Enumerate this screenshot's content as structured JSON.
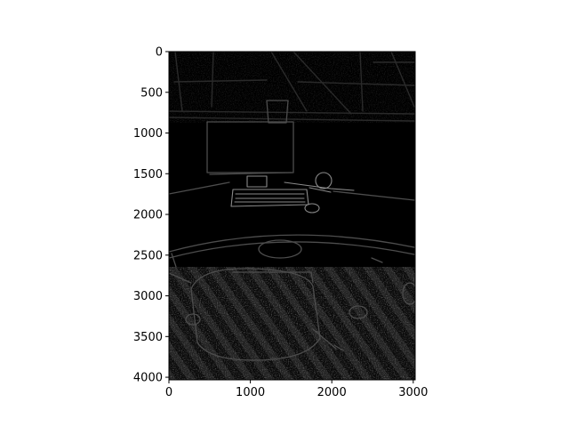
{
  "chart_data": {
    "type": "heatmap",
    "title": "",
    "xlabel": "",
    "ylabel": "",
    "image_content": "edge-detected photograph of an office desk with monitor, keyboard and chair",
    "colormap": "gray",
    "xlim": [
      0,
      3024
    ],
    "ylim": [
      4032,
      0
    ],
    "x_ticks": [
      0,
      1000,
      2000,
      3000
    ],
    "y_ticks": [
      0,
      500,
      1000,
      1500,
      2000,
      2500,
      3000,
      3500,
      4000
    ],
    "grid": false,
    "legend": "none",
    "colors": {
      "background": "#000000",
      "edge_dim": "#2a2a2a",
      "edge_mid": "#4d4d4d",
      "edge_bright": "#8a8a8a",
      "axes": "#000000"
    }
  }
}
